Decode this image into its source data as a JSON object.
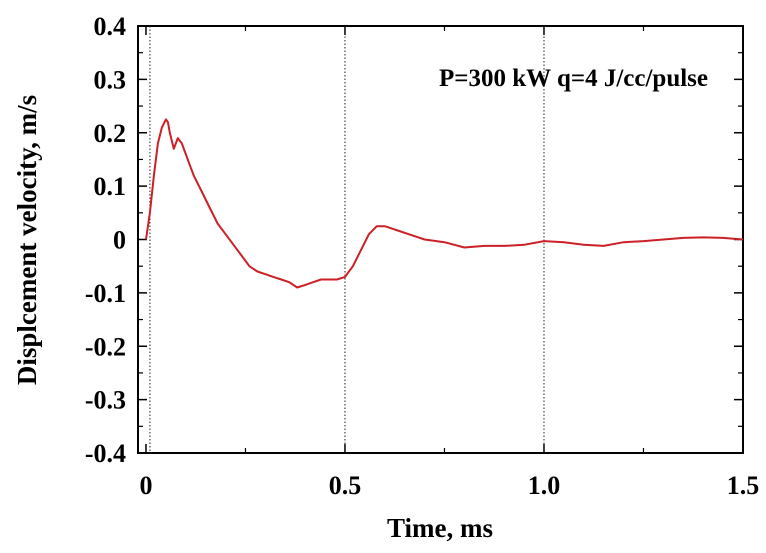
{
  "chart_data": {
    "type": "line",
    "title": "",
    "annotation": "P=300 kW q=4 J/cc/pulse",
    "xlabel": "Time, ms",
    "ylabel": "Displcement velocity, m/s",
    "xlim": [
      -0.02,
      1.5
    ],
    "ylim": [
      -0.4,
      0.4
    ],
    "x_ticks": [
      0,
      0.5,
      1.0,
      1.5
    ],
    "x_tick_labels": [
      "0",
      "0.5",
      "1.0",
      "1.5"
    ],
    "y_ticks": [
      -0.4,
      -0.3,
      -0.2,
      -0.1,
      0,
      0.1,
      0.2,
      0.3,
      0.4
    ],
    "y_tick_labels": [
      "-0.4",
      "-0.3",
      "-0.2",
      "-0.1",
      "0",
      "0.1",
      "0.2",
      "0.3",
      "0.4"
    ],
    "vertical_dotted_lines": [
      0.01,
      0.5,
      1.0
    ],
    "grid": false,
    "line_color": "#cc2027",
    "series": [
      {
        "x": [
          0.0,
          0.01,
          0.02,
          0.03,
          0.04,
          0.05,
          0.055,
          0.06,
          0.07,
          0.08,
          0.09,
          0.1,
          0.11,
          0.12,
          0.14,
          0.16,
          0.18,
          0.2,
          0.22,
          0.24,
          0.26,
          0.28,
          0.3,
          0.32,
          0.34,
          0.36,
          0.38,
          0.4,
          0.42,
          0.44,
          0.46,
          0.48,
          0.5,
          0.52,
          0.54,
          0.56,
          0.58,
          0.6,
          0.62,
          0.64,
          0.66,
          0.68,
          0.7,
          0.75,
          0.8,
          0.85,
          0.9,
          0.95,
          1.0,
          1.05,
          1.1,
          1.15,
          1.2,
          1.25,
          1.3,
          1.35,
          1.4,
          1.45,
          1.5
        ],
        "y": [
          0.0,
          0.05,
          0.12,
          0.18,
          0.21,
          0.225,
          0.22,
          0.2,
          0.17,
          0.19,
          0.18,
          0.16,
          0.14,
          0.12,
          0.09,
          0.06,
          0.03,
          0.01,
          -0.01,
          -0.03,
          -0.05,
          -0.06,
          -0.065,
          -0.07,
          -0.075,
          -0.08,
          -0.09,
          -0.085,
          -0.08,
          -0.075,
          -0.075,
          -0.075,
          -0.07,
          -0.05,
          -0.02,
          0.01,
          0.025,
          0.025,
          0.02,
          0.015,
          0.01,
          0.005,
          0.0,
          -0.005,
          -0.015,
          -0.012,
          -0.012,
          -0.01,
          -0.003,
          -0.005,
          -0.01,
          -0.012,
          -0.005,
          -0.003,
          0.0,
          0.003,
          0.004,
          0.003,
          0.0
        ]
      }
    ]
  }
}
